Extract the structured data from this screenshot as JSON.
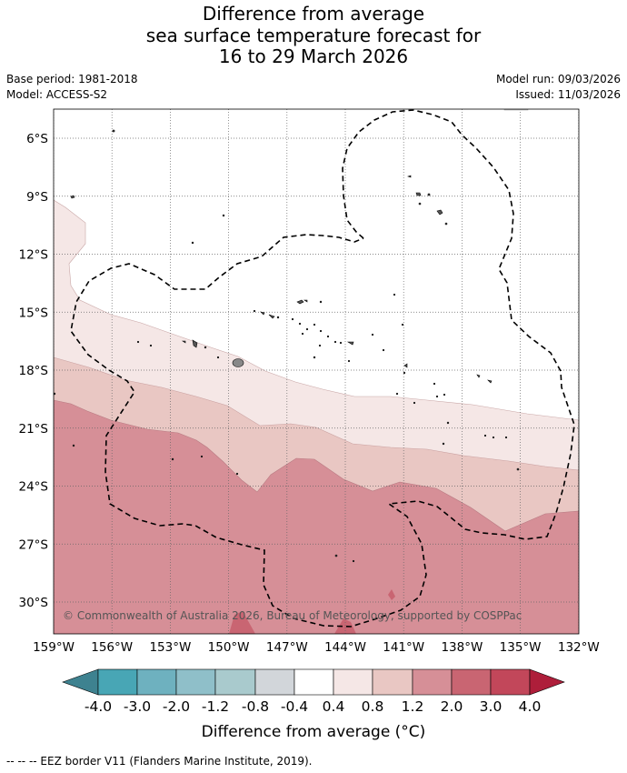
{
  "title": {
    "line1": "Difference from average",
    "line2": "sea surface temperature forecast for",
    "line3": "16 to 29 March 2026"
  },
  "meta": {
    "base_period": "Base period: 1981-2018",
    "model": "Model: ACCESS-S2",
    "model_run": "Model run: 09/03/2026",
    "issued": "Issued: 11/03/2026"
  },
  "map": {
    "lat_labels": [
      "6°S",
      "9°S",
      "12°S",
      "15°S",
      "18°S",
      "21°S",
      "24°S",
      "27°S",
      "30°S"
    ],
    "lon_labels": [
      "159°W",
      "156°W",
      "153°W",
      "150°W",
      "147°W",
      "144°W",
      "141°W",
      "138°W",
      "135°W",
      "132°W"
    ],
    "copyright": "© Commonwealth of Australia 2026, Bureau of Meteorology, supported by COSPPac"
  },
  "colorbar": {
    "ticks": [
      "-4.0",
      "-3.0",
      "-2.0",
      "-1.2",
      "-0.8",
      "-0.4",
      "0.4",
      "0.8",
      "1.2",
      "2.0",
      "3.0",
      "4.0"
    ],
    "colors": {
      "under": "#3e8290",
      "b1": "#48a6b5",
      "b2": "#6eb1bf",
      "b3": "#8fbfc9",
      "b4": "#a9cacd",
      "b5": "#d2d6da",
      "b6": "#ffffff",
      "b7": "#f5e7e6",
      "b8": "#e9c7c3",
      "b9": "#d68f97",
      "b10": "#c96572",
      "b11": "#c2475a",
      "over": "#ae1e3a"
    },
    "label": "Difference from average (°C)"
  },
  "footer": "--  --  -- EEZ border V11 (Flanders Marine Institute, 2019)."
}
